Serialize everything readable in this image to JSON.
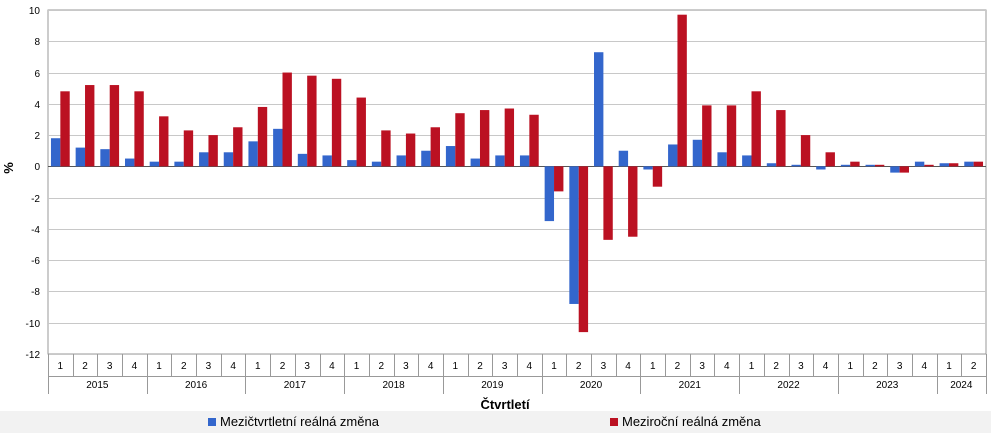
{
  "chart_data": {
    "type": "bar",
    "ylabel": "%",
    "xlabel": "Čtvrtletí",
    "ylim": [
      -12,
      10
    ],
    "yticks": [
      -12,
      -10,
      -8,
      -6,
      -4,
      -2,
      0,
      2,
      4,
      6,
      8,
      10
    ],
    "grid": true,
    "legend_position": "bottom",
    "quarters": [
      "1",
      "2",
      "3",
      "4",
      "1",
      "2",
      "3",
      "4",
      "1",
      "2",
      "3",
      "4",
      "1",
      "2",
      "3",
      "4",
      "1",
      "2",
      "3",
      "4",
      "1",
      "2",
      "3",
      "4",
      "1",
      "2",
      "3",
      "4",
      "1",
      "2",
      "3",
      "4",
      "1",
      "2",
      "3",
      "4",
      "1",
      "2"
    ],
    "years": [
      {
        "label": "2015",
        "count": 4
      },
      {
        "label": "2016",
        "count": 4
      },
      {
        "label": "2017",
        "count": 4
      },
      {
        "label": "2018",
        "count": 4
      },
      {
        "label": "2019",
        "count": 4
      },
      {
        "label": "2020",
        "count": 4
      },
      {
        "label": "2021",
        "count": 4
      },
      {
        "label": "2022",
        "count": 4
      },
      {
        "label": "2023",
        "count": 4
      },
      {
        "label": "2024",
        "count": 2
      }
    ],
    "series": [
      {
        "name": "Mezičtvrtletní reálná změna",
        "color": "#3366cc",
        "values": [
          1.8,
          1.2,
          1.1,
          0.5,
          0.3,
          0.3,
          0.9,
          0.9,
          1.6,
          2.4,
          0.8,
          0.7,
          0.4,
          0.3,
          0.7,
          1.0,
          1.3,
          0.5,
          0.7,
          0.7,
          -3.5,
          -8.8,
          7.3,
          1.0,
          -0.2,
          1.4,
          1.7,
          0.9,
          0.7,
          0.2,
          0.1,
          -0.2,
          0.1,
          0.1,
          -0.4,
          0.3,
          0.2,
          0.3
        ]
      },
      {
        "name": "Meziroční reálná změna",
        "color": "#bb1122",
        "values": [
          4.8,
          5.2,
          5.2,
          4.8,
          3.2,
          2.3,
          2.0,
          2.5,
          3.8,
          6.0,
          5.8,
          5.6,
          4.4,
          2.3,
          2.1,
          2.5,
          3.4,
          3.6,
          3.7,
          3.3,
          -1.6,
          -10.6,
          -4.7,
          -4.5,
          -1.3,
          9.7,
          3.9,
          3.9,
          4.8,
          3.6,
          2.0,
          0.9,
          0.3,
          0.1,
          -0.4,
          0.1,
          0.2,
          0.3
        ]
      }
    ]
  }
}
